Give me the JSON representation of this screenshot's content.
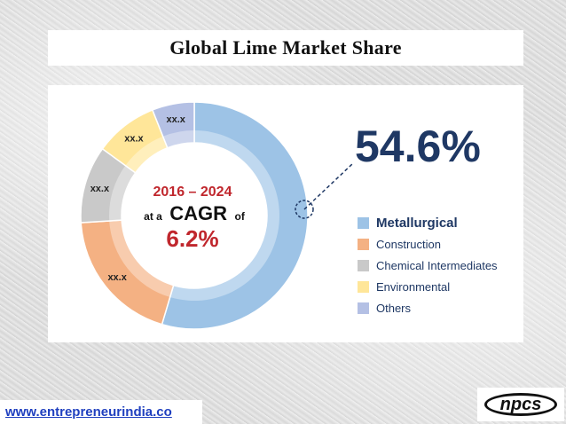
{
  "title": "Global Lime Market Share",
  "footer_url": "www.entrepreneurindia.co",
  "logo_text": "npcs",
  "chart_data": {
    "type": "pie",
    "donut": true,
    "title": "Global Lime Market Share",
    "highlight_value": "54.6%",
    "center_text": {
      "period": "2016 – 2024",
      "cagr_prefix": "at a",
      "cagr_word": "CAGR",
      "cagr_suffix": "of",
      "cagr_value": "6.2%"
    },
    "slices": [
      {
        "name": "Metallurgical",
        "value": 54.6,
        "label": "",
        "color": "#9dc3e6"
      },
      {
        "name": "Construction",
        "value": 19.4,
        "label": "xx.x",
        "color": "#f4b183"
      },
      {
        "name": "Chemical Intermediates",
        "value": 11.0,
        "label": "xx.x",
        "color": "#c9c9c9"
      },
      {
        "name": "Environmental",
        "value": 9.0,
        "label": "xx.x",
        "color": "#ffe699"
      },
      {
        "name": "Others",
        "value": 6.0,
        "label": "xx.x",
        "color": "#b4c0e4"
      }
    ],
    "legend_position": "right"
  }
}
